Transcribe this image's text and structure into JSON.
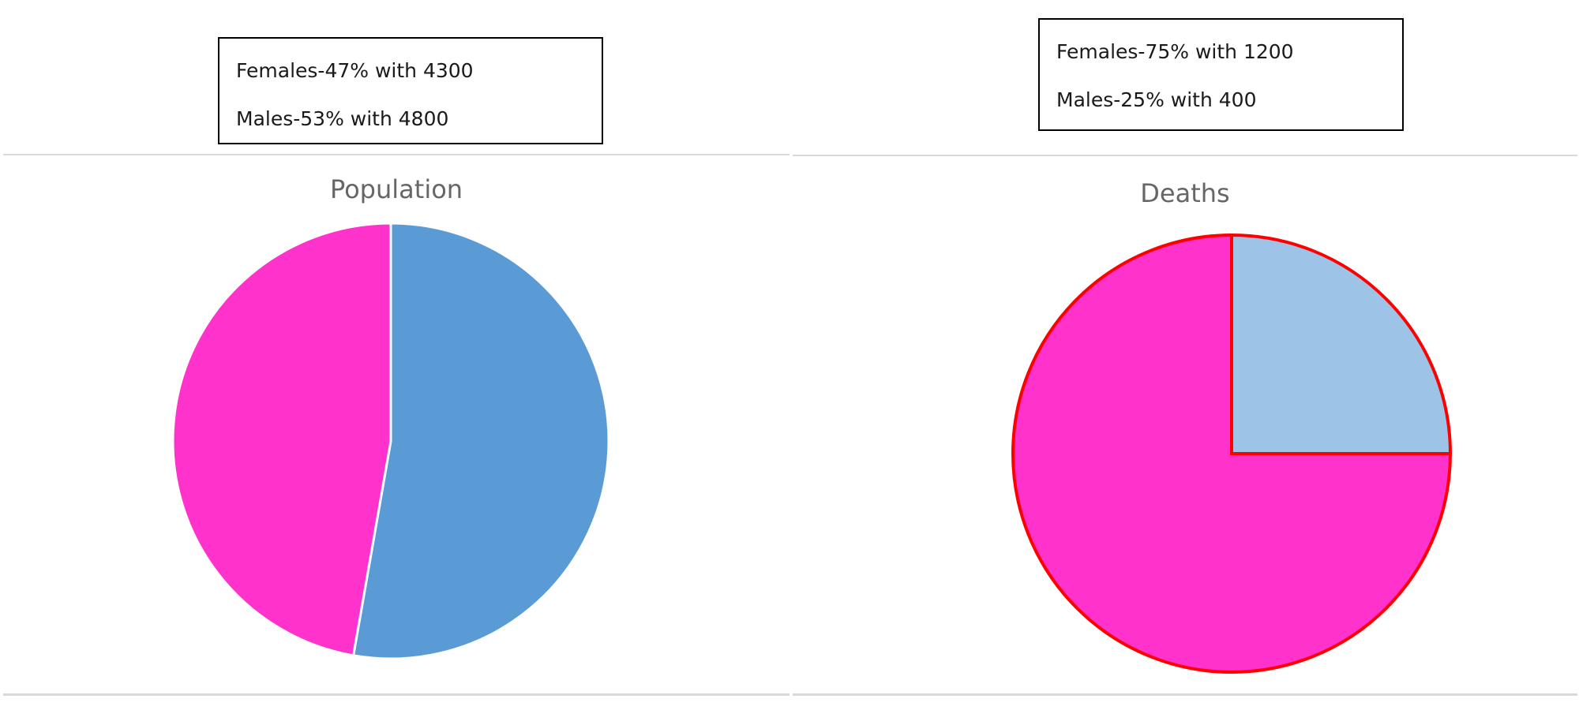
{
  "notes": {
    "left": [
      "Females-47% with 4300",
      "Males-53% with 4800"
    ],
    "right": [
      "Females-75% with 1200",
      "Males-25% with 400"
    ]
  },
  "chart_data": [
    {
      "type": "pie",
      "title": "Population",
      "categories": [
        "Males",
        "Females"
      ],
      "values": [
        4800,
        4300
      ],
      "colors": [
        "#5b9bd5",
        "#ff33cc"
      ],
      "slice_outline": "#ffffff"
    },
    {
      "type": "pie",
      "title": "Deaths",
      "categories": [
        "Males",
        "Females"
      ],
      "values": [
        400,
        1200
      ],
      "colors": [
        "#9dc3e6",
        "#ff33cc"
      ],
      "slice_outline": "#ff0000"
    }
  ]
}
